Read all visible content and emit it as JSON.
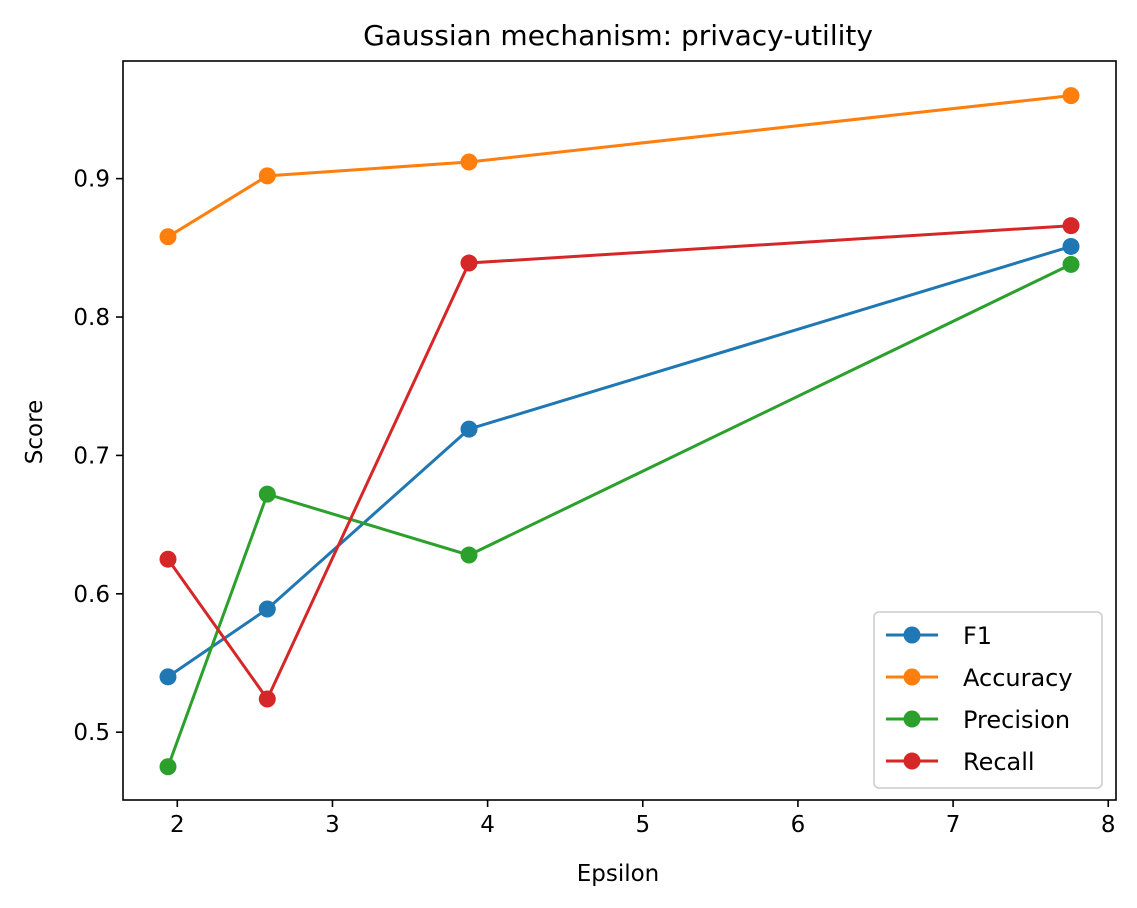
{
  "chart_data": {
    "type": "line",
    "title": "Gaussian mechanism: privacy-utility",
    "xlabel": "Epsilon",
    "ylabel": "Score",
    "xlim": [
      1.65,
      8.05
    ],
    "ylim": [
      0.451,
      0.985
    ],
    "xticks": [
      2,
      3,
      4,
      5,
      6,
      7,
      8
    ],
    "yticks": [
      0.5,
      0.6,
      0.7,
      0.8,
      0.9
    ],
    "ytick_labels": [
      "0.5",
      "0.6",
      "0.7",
      "0.8",
      "0.9"
    ],
    "grid": false,
    "legend_position": "lower-right",
    "x": [
      1.94,
      2.58,
      3.88,
      7.76
    ],
    "series": [
      {
        "name": "F1",
        "color": "#1f77b4",
        "values": [
          0.54,
          0.589,
          0.719,
          0.851
        ]
      },
      {
        "name": "Accuracy",
        "color": "#ff7f0e",
        "values": [
          0.858,
          0.902,
          0.912,
          0.96
        ]
      },
      {
        "name": "Precision",
        "color": "#2ca02c",
        "values": [
          0.475,
          0.672,
          0.628,
          0.838
        ]
      },
      {
        "name": "Recall",
        "color": "#d62728",
        "values": [
          0.625,
          0.524,
          0.839,
          0.866
        ]
      }
    ]
  }
}
